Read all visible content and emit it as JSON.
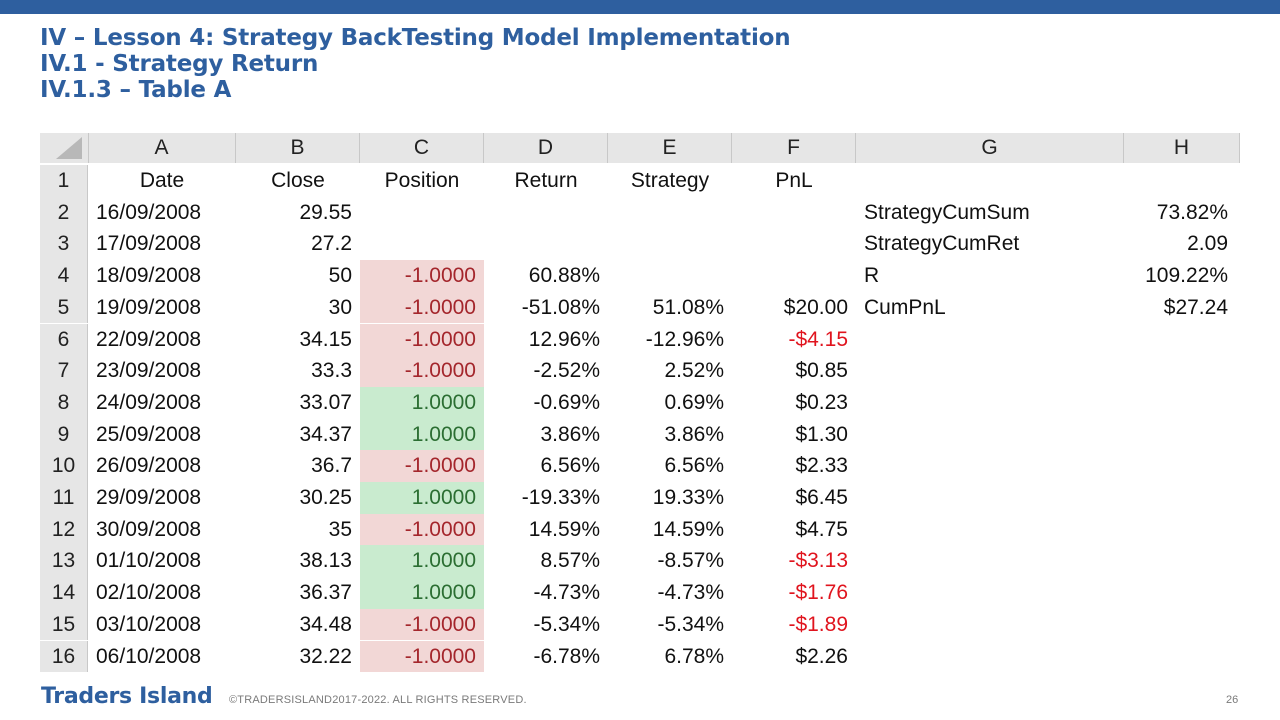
{
  "titles": {
    "line1": "IV – Lesson 4: Strategy BackTesting Model Implementation",
    "line2": "IV.1 - Strategy Return",
    "line3": "IV.1.3 – Table A"
  },
  "columns": [
    "A",
    "B",
    "C",
    "D",
    "E",
    "F",
    "G",
    "H"
  ],
  "rows": [
    {
      "n": "1",
      "date": "Date",
      "close": "Close",
      "position": "Position",
      "return": "Return",
      "strategy": "Strategy",
      "pnl": "PnL",
      "g": "",
      "h": ""
    },
    {
      "n": "2",
      "date": "16/09/2008",
      "close": "29.55",
      "position": "",
      "return": "",
      "strategy": "",
      "pnl": "",
      "g": "StrategyCumSum",
      "h": "73.82%"
    },
    {
      "n": "3",
      "date": "17/09/2008",
      "close": "27.2",
      "position": "",
      "return": "",
      "strategy": "",
      "pnl": "",
      "g": "StrategyCumRet",
      "h": "2.09"
    },
    {
      "n": "4",
      "date": "18/09/2008",
      "close": "50",
      "position": "-1.0000",
      "return": "60.88%",
      "strategy": "",
      "pnl": "",
      "g": "R",
      "h": "109.22%"
    },
    {
      "n": "5",
      "date": "19/09/2008",
      "close": "30",
      "position": "-1.0000",
      "return": "-51.08%",
      "strategy": "51.08%",
      "pnl": "$20.00",
      "g": "CumPnL",
      "h": "$27.24"
    },
    {
      "n": "6",
      "date": "22/09/2008",
      "close": "34.15",
      "position": "-1.0000",
      "return": "12.96%",
      "strategy": "-12.96%",
      "pnl": "-$4.15",
      "g": "",
      "h": ""
    },
    {
      "n": "7",
      "date": "23/09/2008",
      "close": "33.3",
      "position": "-1.0000",
      "return": "-2.52%",
      "strategy": "2.52%",
      "pnl": "$0.85",
      "g": "",
      "h": ""
    },
    {
      "n": "8",
      "date": "24/09/2008",
      "close": "33.07",
      "position": "1.0000",
      "return": "-0.69%",
      "strategy": "0.69%",
      "pnl": "$0.23",
      "g": "",
      "h": ""
    },
    {
      "n": "9",
      "date": "25/09/2008",
      "close": "34.37",
      "position": "1.0000",
      "return": "3.86%",
      "strategy": "3.86%",
      "pnl": "$1.30",
      "g": "",
      "h": ""
    },
    {
      "n": "10",
      "date": "26/09/2008",
      "close": "36.7",
      "position": "-1.0000",
      "return": "6.56%",
      "strategy": "6.56%",
      "pnl": "$2.33",
      "g": "",
      "h": ""
    },
    {
      "n": "11",
      "date": "29/09/2008",
      "close": "30.25",
      "position": "1.0000",
      "return": "-19.33%",
      "strategy": "19.33%",
      "pnl": "$6.45",
      "g": "",
      "h": ""
    },
    {
      "n": "12",
      "date": "30/09/2008",
      "close": "35",
      "position": "-1.0000",
      "return": "14.59%",
      "strategy": "14.59%",
      "pnl": "$4.75",
      "g": "",
      "h": ""
    },
    {
      "n": "13",
      "date": "01/10/2008",
      "close": "38.13",
      "position": "1.0000",
      "return": "8.57%",
      "strategy": "-8.57%",
      "pnl": "-$3.13",
      "g": "",
      "h": ""
    },
    {
      "n": "14",
      "date": "02/10/2008",
      "close": "36.37",
      "position": "1.0000",
      "return": "-4.73%",
      "strategy": "-4.73%",
      "pnl": "-$1.76",
      "g": "",
      "h": ""
    },
    {
      "n": "15",
      "date": "03/10/2008",
      "close": "34.48",
      "position": "-1.0000",
      "return": "-5.34%",
      "strategy": "-5.34%",
      "pnl": "-$1.89",
      "g": "",
      "h": ""
    },
    {
      "n": "16",
      "date": "06/10/2008",
      "close": "32.22",
      "position": "-1.0000",
      "return": "-6.78%",
      "strategy": "6.78%",
      "pnl": "$2.26",
      "g": "",
      "h": ""
    }
  ],
  "colors": {
    "brand": "#2e5f9f",
    "negative_position_fill": "#f2d7d6",
    "positive_position_fill": "#c9ebcf",
    "negative_pnl_text": "#e0141e"
  },
  "footer": {
    "logo": "Traders Island",
    "copyright": "©TRADERSISLAND2017-2022. ALL RIGHTS RESERVED.",
    "page_number": "26"
  }
}
